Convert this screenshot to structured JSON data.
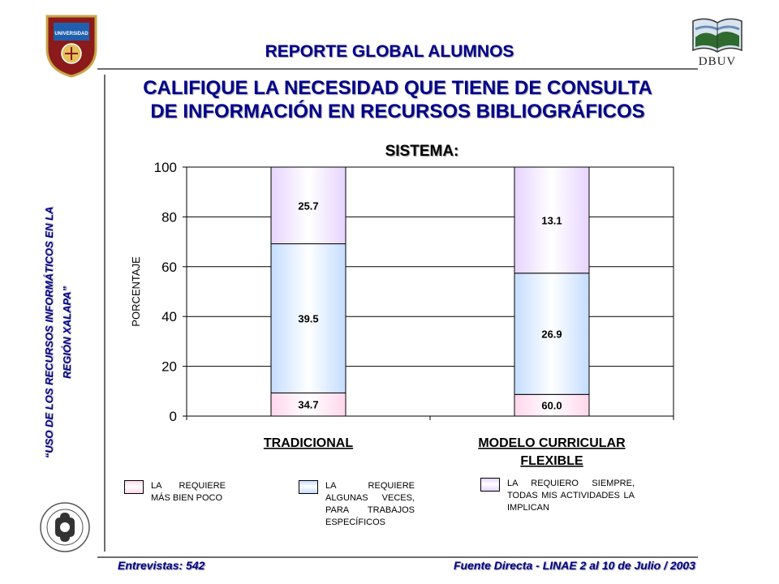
{
  "header": {
    "title": "REPORTE GLOBAL ALUMNOS",
    "main_title_line1": "CALIFIQUE LA NECESIDAD QUE TIENE DE CONSULTA",
    "main_title_line2": "DE INFORMACIÓN EN RECURSOS BIBLIOGRÁFICOS",
    "right_logo_text": "DBUV",
    "left_logo_text": "UNIVERSIDAD"
  },
  "side": {
    "line1": "“USO DE LOS RECURSOS INFORMÁTICOS EN LA",
    "line2": "REGIÓN XALAPA”"
  },
  "footer": {
    "left": "Entrevistas: 542",
    "right": "Fuente Directa -  LINAE 2 al 10  de Julio / 2003"
  },
  "chart_data": {
    "type": "bar",
    "stacked": true,
    "title": "SISTEMA:",
    "xlabel": "",
    "ylabel": "PORCENTAJE",
    "ylim": [
      0,
      100
    ],
    "yticks": [
      "0",
      "20",
      "40",
      "60",
      "80",
      "100"
    ],
    "grid": true,
    "categories": [
      "TRADICIONAL",
      "MODELO CURRICULAR FLEXIBLE"
    ],
    "series": [
      {
        "name": "LA REQUIERE MÁS BIEN POCO",
        "values": [
          34.7,
          60.0
        ],
        "labels": [
          "34.7",
          "60.0"
        ],
        "color": "#ffd6ec"
      },
      {
        "name": "LA REQUIERE ALGUNAS VECES, PARA TRABAJOS ESPECÍFICOS",
        "values": [
          39.5,
          26.9
        ],
        "labels": [
          "39.5",
          "26.9"
        ],
        "color": "#c4dcff"
      },
      {
        "name": "LA REQUIERO SIEMPRE, TODAS MIS ACTIVIDADES LA IMPLICAN",
        "values": [
          25.7,
          13.1
        ],
        "labels": [
          "25.7",
          "13.1"
        ],
        "color": "#e6d4ff"
      }
    ],
    "segment_tops": [
      [
        9.3,
        69.2,
        100
      ],
      [
        8.7,
        57.4,
        100
      ]
    ],
    "legend_position": "bottom"
  }
}
